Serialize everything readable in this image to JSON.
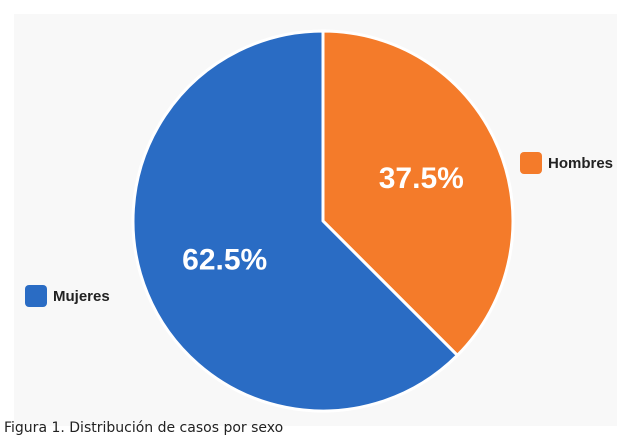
{
  "chart_data": {
    "type": "pie",
    "categories": [
      "Hombres",
      "Mujeres"
    ],
    "values": [
      37.5,
      62.5
    ],
    "labels": [
      "37.5%",
      "62.5%"
    ],
    "colors": [
      "#f47b2a",
      "#2a6cc4"
    ],
    "legend": [
      {
        "name": "Hombres",
        "color": "#f47b2a",
        "position": "right"
      },
      {
        "name": "Mujeres",
        "color": "#2a6cc4",
        "position": "left"
      }
    ],
    "start_angle": "top, clockwise"
  },
  "caption": "Figura 1. Distribución de casos por sexo"
}
